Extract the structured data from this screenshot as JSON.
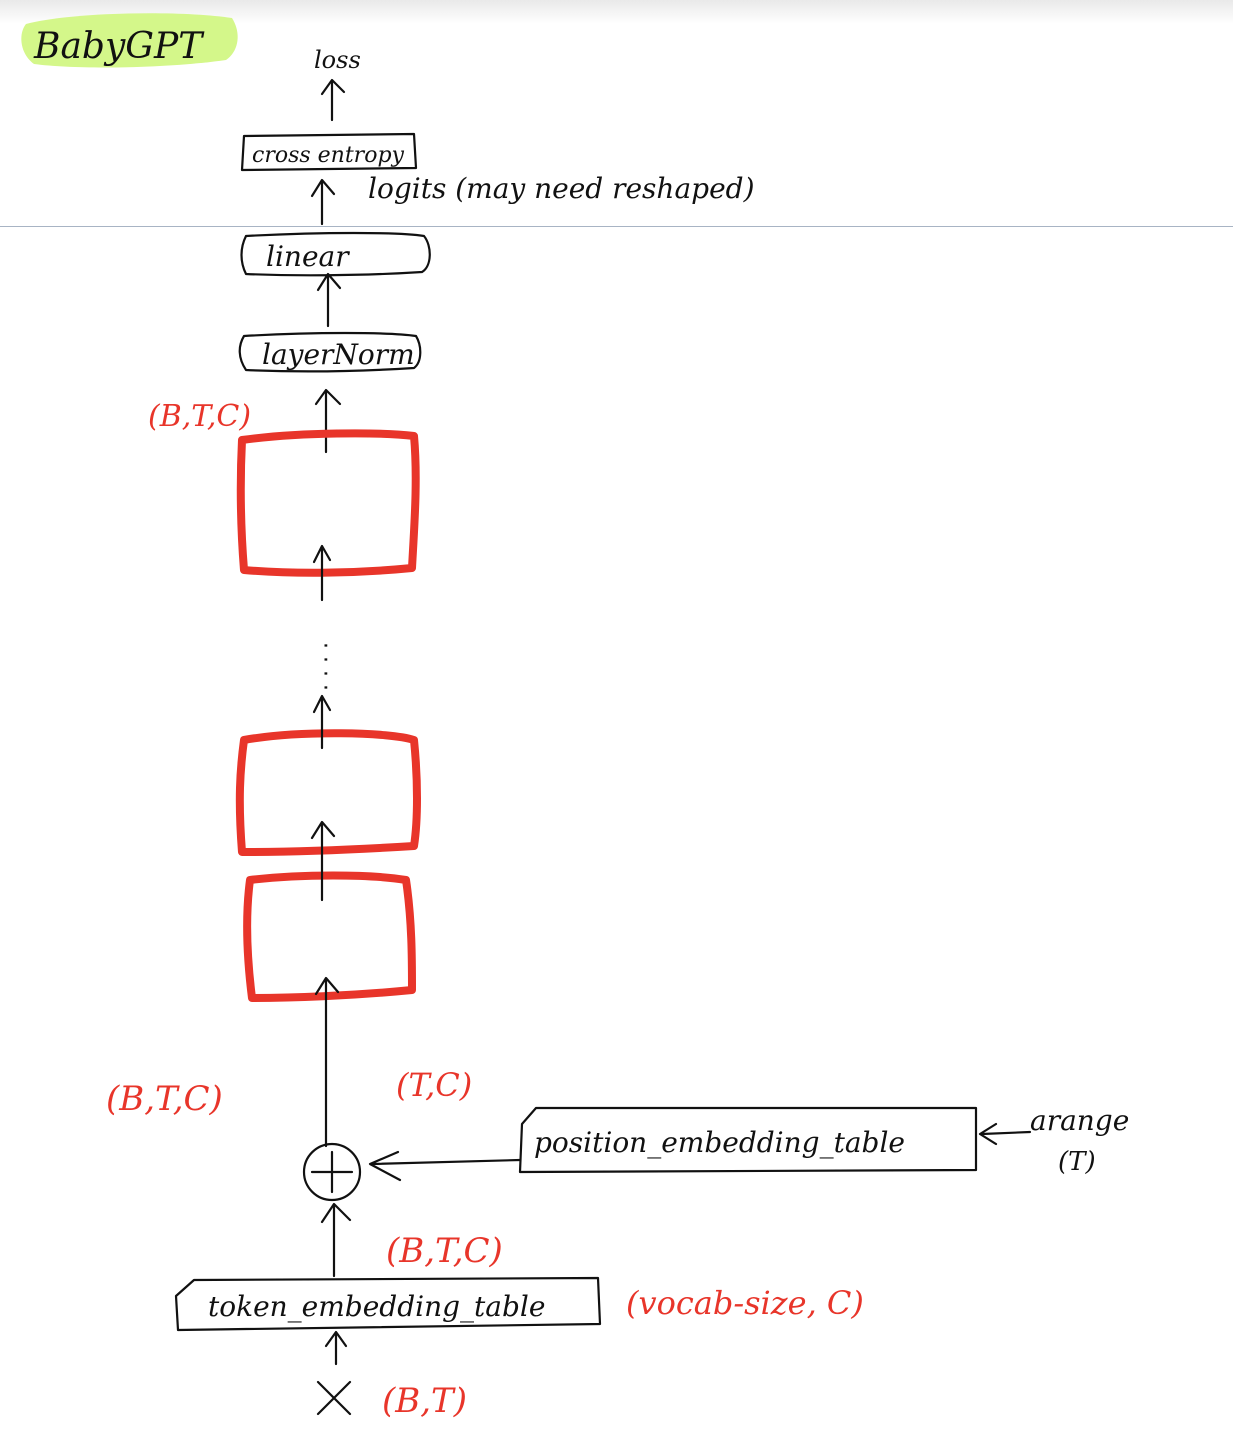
{
  "title": "BabyGPT",
  "colors": {
    "ink": "#111111",
    "red": "#e8352a",
    "highlight": "#d4f78a",
    "rule": "#a8b4c4"
  },
  "nodes": {
    "loss": "loss",
    "cross_entropy": "cross entropy",
    "logits_note": "logits (may need reshaped)",
    "linear": "linear",
    "layernorm": "layerNorm",
    "position_embedding": "position_embedding_table",
    "token_embedding": "token_embedding_table",
    "plus": "+",
    "x": "X",
    "arange": "arange",
    "arange_arg": "(T)"
  },
  "shape_labels": {
    "after_blocks": "(B,T,C)",
    "sum": "(B,T,C)",
    "pos_out": "(T,C)",
    "tok_out": "(B,T,C)",
    "tok_table": "(vocab-size, C)",
    "input": "(B,T)"
  },
  "ellipsis": "· · · ·"
}
